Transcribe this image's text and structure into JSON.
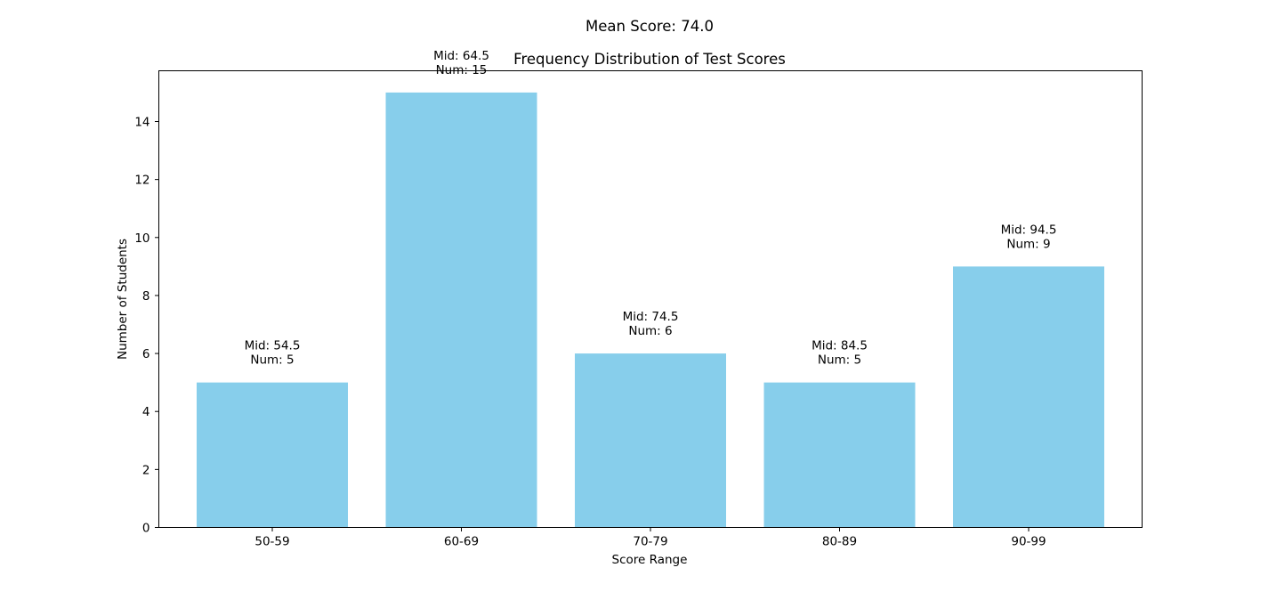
{
  "chart_data": {
    "type": "bar",
    "title": "Frequency Distribution of Test Scores",
    "suptitle": "Mean Score: 74.0",
    "suptitle_color": "#ff0000",
    "xlabel": "Score Range",
    "ylabel": "Number of Students",
    "categories": [
      "50-59",
      "60-69",
      "70-79",
      "80-89",
      "90-99"
    ],
    "values": [
      5,
      15,
      6,
      5,
      9
    ],
    "midpoints": [
      54.5,
      64.5,
      74.5,
      84.5,
      94.5
    ],
    "bar_labels": [
      [
        "Mid: 54.5",
        "Num: 5"
      ],
      [
        "Mid: 64.5",
        "Num: 15"
      ],
      [
        "Mid: 74.5",
        "Num: 6"
      ],
      [
        "Mid: 84.5",
        "Num: 5"
      ],
      [
        "Mid: 94.5",
        "Num: 9"
      ]
    ],
    "bar_color": "#87ceeb",
    "ylim": [
      0,
      15.75
    ],
    "yticks": [
      0,
      2,
      4,
      6,
      8,
      10,
      12,
      14
    ],
    "grid": false,
    "legend": "none"
  }
}
